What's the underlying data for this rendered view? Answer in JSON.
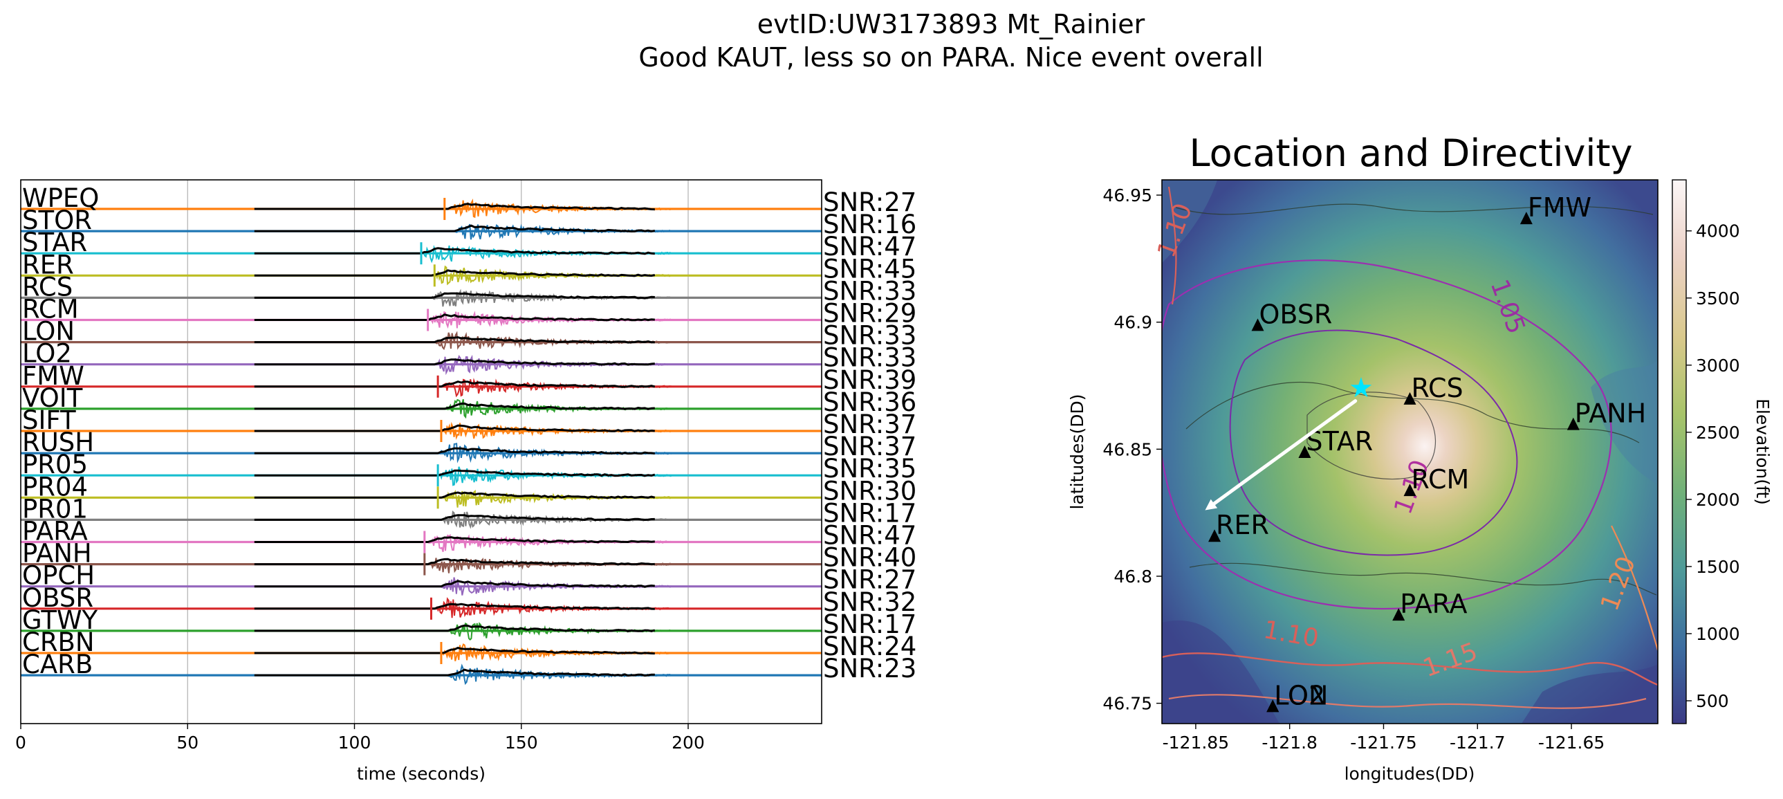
{
  "figure": {
    "title_line1": "evtID:UW3173893 Mt_Rainier",
    "title_line2": "Good KAUT, less so on PARA.  Nice event overall"
  },
  "chart_data": [
    {
      "type": "line",
      "title": "",
      "xlabel": "time (seconds)",
      "ylabel": "",
      "xlim": [
        0,
        240
      ],
      "xticks": [
        0,
        50,
        100,
        150,
        200
      ],
      "grid": "vertical lines at x ticks",
      "envelope_window": [
        70,
        190
      ],
      "series": [
        {
          "name": "WPEQ",
          "snr": "SNR:27",
          "color": "#ff7f0e",
          "pick": 127,
          "onset": 128
        },
        {
          "name": "STOR",
          "snr": "SNR:16",
          "color": "#1f77b4",
          "pick": null,
          "onset": 130
        },
        {
          "name": "STAR",
          "snr": "SNR:47",
          "color": "#17becf",
          "pick": 120,
          "onset": 120
        },
        {
          "name": "RER",
          "snr": "SNR:45",
          "color": "#bcbd22",
          "pick": 124,
          "onset": 123
        },
        {
          "name": "RCS",
          "snr": "SNR:33",
          "color": "#7f7f7f",
          "pick": null,
          "onset": 123
        },
        {
          "name": "RCM",
          "snr": "SNR:29",
          "color": "#e377c2",
          "pick": 122,
          "onset": 122
        },
        {
          "name": "LON",
          "snr": "SNR:33",
          "color": "#8c564b",
          "pick": null,
          "onset": 124
        },
        {
          "name": "LO2",
          "snr": "SNR:33",
          "color": "#9467bd",
          "pick": null,
          "onset": 124
        },
        {
          "name": "FMW",
          "snr": "SNR:39",
          "color": "#d62728",
          "pick": 125,
          "onset": 126
        },
        {
          "name": "VOIT",
          "snr": "SNR:36",
          "color": "#2ca02c",
          "pick": null,
          "onset": 127
        },
        {
          "name": "SIFT",
          "snr": "SNR:37",
          "color": "#ff7f0e",
          "pick": 126,
          "onset": 126
        },
        {
          "name": "RUSH",
          "snr": "SNR:37",
          "color": "#1f77b4",
          "pick": null,
          "onset": 125
        },
        {
          "name": "PR05",
          "snr": "SNR:35",
          "color": "#17becf",
          "pick": 125,
          "onset": 125
        },
        {
          "name": "PR04",
          "snr": "SNR:30",
          "color": "#bcbd22",
          "pick": 125,
          "onset": 126
        },
        {
          "name": "PR01",
          "snr": "SNR:17",
          "color": "#7f7f7f",
          "pick": null,
          "onset": 126
        },
        {
          "name": "PARA",
          "snr": "SNR:47",
          "color": "#e377c2",
          "pick": 121,
          "onset": 122
        },
        {
          "name": "PANH",
          "snr": "SNR:40",
          "color": "#8c564b",
          "pick": 121,
          "onset": 122
        },
        {
          "name": "OPCH",
          "snr": "SNR:27",
          "color": "#9467bd",
          "pick": null,
          "onset": 126
        },
        {
          "name": "OBSR",
          "snr": "SNR:32",
          "color": "#d62728",
          "pick": 123,
          "onset": 124
        },
        {
          "name": "GTWY",
          "snr": "SNR:17",
          "color": "#2ca02c",
          "pick": null,
          "onset": 128
        },
        {
          "name": "CRBN",
          "snr": "SNR:24",
          "color": "#ff7f0e",
          "pick": 126,
          "onset": 126
        },
        {
          "name": "CARB",
          "snr": "SNR:23",
          "color": "#1f77b4",
          "pick": null,
          "onset": 128
        }
      ]
    },
    {
      "type": "map",
      "title": "Location and Directivity",
      "xlabel": "longitudes(DD)",
      "ylabel": "latitudes(DD)",
      "xlim": [
        -121.868,
        -121.604
      ],
      "ylim": [
        46.742,
        46.956
      ],
      "xticks": [
        -121.85,
        -121.8,
        -121.75,
        -121.7,
        -121.65
      ],
      "xtick_labels": [
        "-121.85",
        "-121.8",
        "-121.75",
        "-121.7",
        "-121.65"
      ],
      "yticks": [
        46.75,
        46.8,
        46.85,
        46.9,
        46.95
      ],
      "ytick_labels": [
        "46.75",
        "46.8",
        "46.85",
        "46.9",
        "46.95"
      ],
      "colorbar": {
        "label": "Elevation(ft)",
        "range": [
          330,
          4380
        ],
        "ticks": [
          500,
          1000,
          1500,
          2000,
          2500,
          3000,
          3500,
          4000
        ],
        "tick_labels": [
          "500",
          "1000",
          "1500",
          "2000",
          "2500",
          "3000",
          "3500",
          "4000"
        ],
        "colors": [
          "#3b3a85",
          "#3d6da0",
          "#4f9a9a",
          "#6fb07a",
          "#a8c46a",
          "#d9c98c",
          "#ecd2c7",
          "#fbf6f6"
        ]
      },
      "stations": [
        {
          "name": "FMW",
          "lon": -121.674,
          "lat": 46.941
        },
        {
          "name": "OBSR",
          "lon": -121.817,
          "lat": 46.899
        },
        {
          "name": "RCS",
          "lon": -121.736,
          "lat": 46.87
        },
        {
          "name": "PANH",
          "lon": -121.649,
          "lat": 46.86
        },
        {
          "name": "STAR",
          "lon": -121.792,
          "lat": 46.849
        },
        {
          "name": "RCM",
          "lon": -121.736,
          "lat": 46.834
        },
        {
          "name": "RER",
          "lon": -121.84,
          "lat": 46.816
        },
        {
          "name": "PARA",
          "lon": -121.742,
          "lat": 46.785
        },
        {
          "name": "LON",
          "lon": -121.809,
          "lat": 46.749
        },
        {
          "name": "LO2",
          "lon": -121.809,
          "lat": 46.749
        }
      ],
      "epicenter": {
        "lon": -121.762,
        "lat": 46.874,
        "color": "#00e5ff"
      },
      "directivity_arrow": {
        "from_lon": -121.765,
        "from_lat": 46.869,
        "to_lon": -121.845,
        "to_lat": 46.826,
        "color": "#ffffff"
      },
      "contour_labels": [
        {
          "text": "1.10",
          "lon": -121.857,
          "lat": 46.935,
          "color": "#d9605a",
          "rot": -70
        },
        {
          "text": "1.05",
          "lon": -121.688,
          "lat": 46.905,
          "color": "#9a2ea0",
          "rot": 70
        },
        {
          "text": "1.10",
          "lon": -121.731,
          "lat": 46.834,
          "color": "#b0309f",
          "rot": -70
        },
        {
          "text": "1.10",
          "lon": -121.8,
          "lat": 46.774,
          "color": "#d9605a",
          "rot": 10
        },
        {
          "text": "1.15",
          "lon": -121.713,
          "lat": 46.764,
          "color": "#e0786a",
          "rot": -20
        },
        {
          "text": "1.20",
          "lon": -121.621,
          "lat": 46.796,
          "color": "#ee8a55",
          "rot": -70
        }
      ]
    }
  ]
}
